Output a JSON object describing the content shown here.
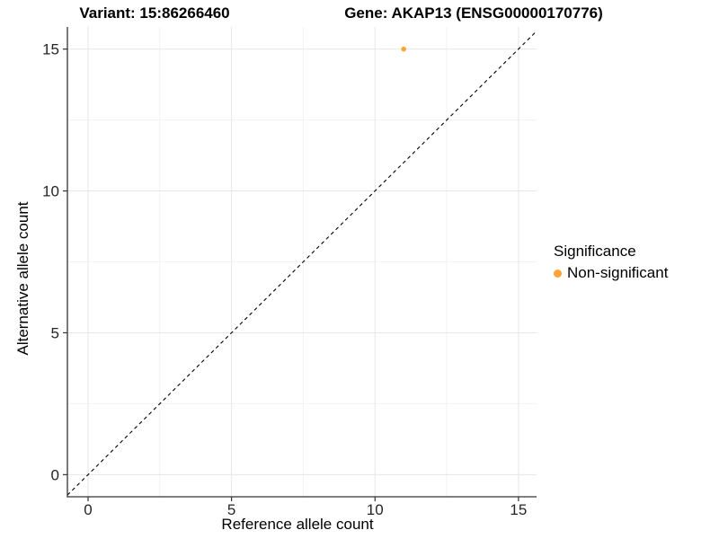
{
  "chart_data": {
    "type": "scatter",
    "title_left": "Variant: 15:86266460",
    "title_right": "Gene: AKAP13 (ENSG00000170776)",
    "xlabel": "Reference allele count",
    "ylabel": "Alternative allele count",
    "xlim": [
      -0.72,
      15.63
    ],
    "ylim": [
      -0.78,
      15.78
    ],
    "x_ticks": [
      0,
      5,
      10,
      15
    ],
    "y_ticks": [
      0,
      5,
      10,
      15
    ],
    "x_minor_ticks": [
      2.5,
      7.5,
      12.5
    ],
    "y_minor_ticks": [
      2.5,
      7.5,
      12.5
    ],
    "grid": "major and minor, light gray",
    "points": [
      {
        "x": 11,
        "y": 15,
        "significance": "Non-significant"
      }
    ],
    "reference_line": {
      "type": "identity y=x",
      "style": "dashed",
      "color": "#000000"
    },
    "legend": {
      "title": "Significance",
      "position": "right",
      "items": [
        {
          "label": "Non-significant",
          "color": "#FFA333",
          "marker": "circle"
        }
      ]
    },
    "colors": {
      "point": "#FFA333",
      "axis_line": "#333333",
      "tick_label": "#262626",
      "grid_major": "#E6E6E6",
      "grid_minor": "#F2F2F2",
      "background": "#FFFFFF"
    }
  }
}
